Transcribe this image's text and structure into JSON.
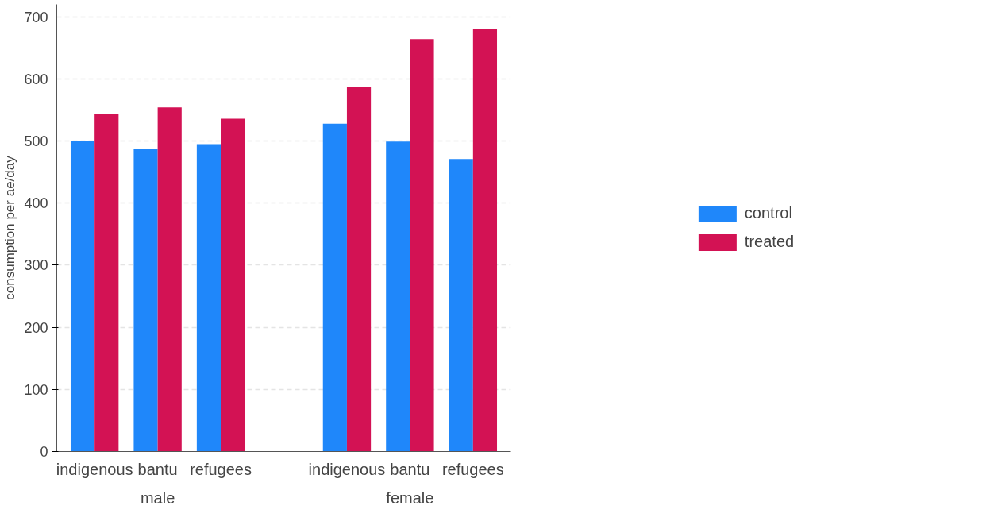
{
  "chart_data": {
    "type": "bar",
    "ylabel": "consumption per ae/day",
    "categories": [
      "indigenous",
      "bantu",
      "refugees",
      null,
      "indigenous",
      "bantu",
      "refugees"
    ],
    "annotations": [
      "male",
      "female"
    ],
    "series": [
      {
        "name": "control",
        "color": "#1f87fa",
        "values": [
          500,
          487,
          495,
          null,
          528,
          499,
          471
        ]
      },
      {
        "name": "treated",
        "color": "#d31254",
        "values": [
          544,
          554,
          536,
          null,
          587,
          664,
          681
        ]
      }
    ],
    "ylim": [
      0,
      720
    ],
    "yticks": [
      0,
      100,
      200,
      300,
      400,
      500,
      600,
      700
    ],
    "grid": "y",
    "legend": "right"
  }
}
